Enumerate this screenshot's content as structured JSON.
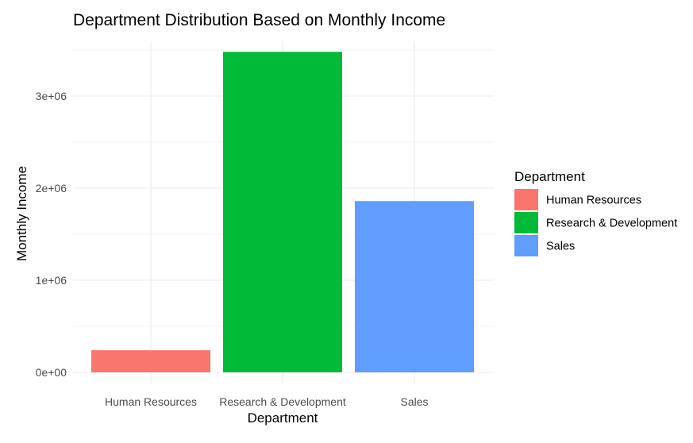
{
  "chart_data": {
    "type": "bar",
    "title": "Department Distribution Based on Monthly Income",
    "xlabel": "Department",
    "ylabel": "Monthly Income",
    "categories": [
      "Human Resources",
      "Research & Development",
      "Sales"
    ],
    "values": [
      240000,
      3480000,
      1860000
    ],
    "colors": [
      "#F8766D",
      "#00BA38",
      "#619CFF"
    ],
    "ylim": [
      0,
      3500000
    ],
    "yticks": [
      0,
      1000000,
      2000000,
      3000000
    ],
    "ytick_labels": [
      "0e+00",
      "1e+06",
      "2e+06",
      "3e+06"
    ],
    "grid": true,
    "legend": {
      "title": "Department",
      "position": "right",
      "entries": [
        "Human Resources",
        "Research & Development",
        "Sales"
      ]
    }
  }
}
